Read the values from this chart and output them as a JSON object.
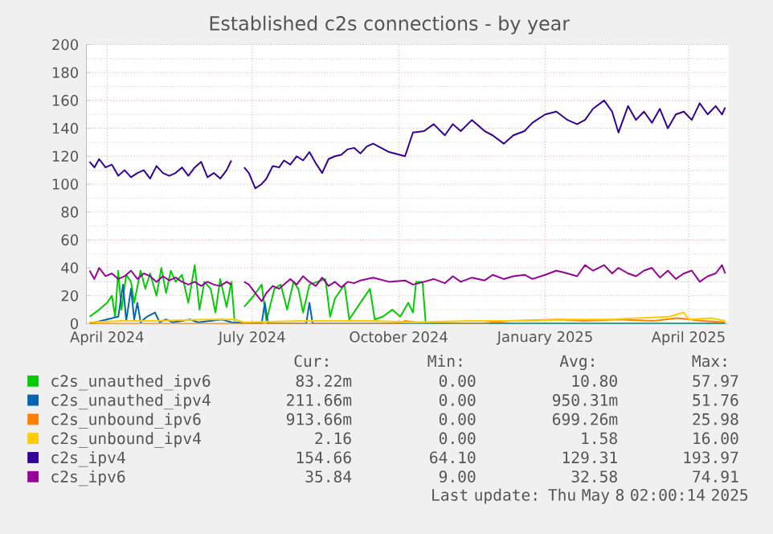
{
  "chart_data": {
    "type": "line",
    "title": "Established c2s connections - by year",
    "xlim": [
      "2024-03-19",
      "2025-04-26"
    ],
    "xticks": [
      {
        "value": "2024-04-01",
        "label": "April 2024"
      },
      {
        "value": "2024-07-01",
        "label": "July 2024"
      },
      {
        "value": "2024-10-01",
        "label": "October 2024"
      },
      {
        "value": "2025-01-01",
        "label": "January 2025"
      },
      {
        "value": "2025-04-01",
        "label": "April 2025"
      }
    ],
    "ylim": [
      0,
      200
    ],
    "yticks": [
      0,
      20,
      40,
      60,
      80,
      100,
      120,
      140,
      160,
      180,
      200
    ],
    "grid": true,
    "legend": "bottom",
    "x": [
      "2024-03-21",
      "2024-03-24",
      "2024-03-27",
      "2024-03-31",
      "2024-04-04",
      "2024-04-08",
      "2024-04-12",
      "2024-04-16",
      "2024-04-20",
      "2024-04-24",
      "2024-04-28",
      "2024-05-02",
      "2024-05-06",
      "2024-05-10",
      "2024-05-14",
      "2024-05-18",
      "2024-05-22",
      "2024-05-26",
      "2024-05-30",
      "2024-06-03",
      "2024-06-07",
      "2024-06-11",
      "2024-06-15",
      "2024-06-18",
      "2024-06-22",
      "2024-06-26",
      "2024-06-29",
      "2024-07-03",
      "2024-07-07",
      "2024-07-10",
      "2024-07-14",
      "2024-07-18",
      "2024-07-21",
      "2024-07-25",
      "2024-07-29",
      "2024-08-02",
      "2024-08-06",
      "2024-08-10",
      "2024-08-14",
      "2024-08-18",
      "2024-08-22",
      "2024-08-26",
      "2024-08-30",
      "2024-09-03",
      "2024-09-07",
      "2024-09-11",
      "2024-09-15",
      "2024-09-25",
      "2024-10-05",
      "2024-10-10",
      "2024-10-17",
      "2024-10-23",
      "2024-10-30",
      "2024-11-04",
      "2024-11-09",
      "2024-11-16",
      "2024-11-24",
      "2024-11-29",
      "2024-12-06",
      "2024-12-12",
      "2024-12-19",
      "2024-12-24",
      "2025-01-01",
      "2025-01-08",
      "2025-01-15",
      "2025-01-21",
      "2025-01-26",
      "2025-01-31",
      "2025-02-07",
      "2025-02-12",
      "2025-02-16",
      "2025-02-22",
      "2025-02-27",
      "2025-03-04",
      "2025-03-09",
      "2025-03-14",
      "2025-03-19",
      "2025-03-24",
      "2025-03-29",
      "2025-04-03",
      "2025-04-08",
      "2025-04-13",
      "2025-04-18",
      "2025-04-22",
      "2025-04-24"
    ],
    "series": [
      {
        "name": "c2s_unauthed_ipv6",
        "color": "#00cc00",
        "x": [
          "2024-03-21",
          "2024-03-27",
          "2024-04-01",
          "2024-04-04",
          "2024-04-06",
          "2024-04-08",
          "2024-04-10",
          "2024-04-13",
          "2024-04-16",
          "2024-04-18",
          "2024-04-22",
          "2024-04-25",
          "2024-04-28",
          "2024-05-02",
          "2024-05-05",
          "2024-05-08",
          "2024-05-11",
          "2024-05-14",
          "2024-05-18",
          "2024-05-22",
          "2024-05-26",
          "2024-05-29",
          "2024-06-01",
          "2024-06-05",
          "2024-06-08",
          "2024-06-11",
          "2024-06-15",
          "2024-06-18",
          "2024-06-20",
          "2024-06-22",
          "2024-06-26",
          "2024-07-02",
          "2024-07-07",
          "2024-07-10",
          "2024-07-15",
          "2024-07-19",
          "2024-07-23",
          "2024-07-27",
          "2024-07-30",
          "2024-08-02",
          "2024-08-06",
          "2024-08-11",
          "2024-08-16",
          "2024-08-19",
          "2024-08-22",
          "2024-08-28",
          "2024-08-31",
          "2024-09-07",
          "2024-09-13",
          "2024-09-16",
          "2024-09-21",
          "2024-09-27",
          "2024-10-02",
          "2024-10-07",
          "2024-10-10",
          "2024-10-12",
          "2024-10-16",
          "2024-10-18",
          "2025-04-24"
        ],
        "values": [
          5,
          10,
          15,
          20,
          5,
          38,
          10,
          35,
          30,
          15,
          38,
          25,
          36,
          20,
          40,
          22,
          38,
          30,
          35,
          15,
          42,
          10,
          30,
          25,
          8,
          32,
          12,
          30,
          2,
          null,
          12,
          20,
          28,
          2,
          25,
          28,
          10,
          30,
          25,
          8,
          28,
          30,
          32,
          5,
          18,
          28,
          3,
          15,
          25,
          3,
          5,
          10,
          5,
          15,
          8,
          30,
          30,
          0,
          0
        ]
      },
      {
        "name": "c2s_unauthed_ipv4",
        "color": "#0066b3",
        "x": [
          "2024-03-21",
          "2024-04-08",
          "2024-04-11",
          "2024-04-13",
          "2024-04-16",
          "2024-04-18",
          "2024-04-20",
          "2024-04-22",
          "2024-04-26",
          "2024-05-01",
          "2024-05-04",
          "2024-05-08",
          "2024-05-12",
          "2024-05-18",
          "2024-05-23",
          "2024-05-28",
          "2024-06-05",
          "2024-06-12",
          "2024-06-18",
          "2024-07-07",
          "2024-07-09",
          "2024-07-11",
          "2024-08-04",
          "2024-08-06",
          "2024-08-08",
          "2025-04-24"
        ],
        "values": [
          0,
          5,
          28,
          2,
          25,
          3,
          15,
          1,
          5,
          8,
          1,
          3,
          1,
          2,
          3,
          1,
          2,
          3,
          1,
          0,
          15,
          0,
          0,
          15,
          0,
          0
        ]
      },
      {
        "name": "c2s_unbound_ipv6",
        "color": "#ff8000",
        "x": [
          "2024-03-21",
          "2024-10-01",
          "2024-10-05",
          "2024-10-12",
          "2024-11-20",
          "2024-12-10",
          "2025-01-10",
          "2025-01-25",
          "2025-02-15",
          "2025-03-10",
          "2025-03-25",
          "2025-04-10",
          "2025-04-24"
        ],
        "values": [
          0,
          0,
          2,
          1,
          0,
          2,
          3,
          2,
          3,
          2,
          4,
          2,
          1
        ]
      },
      {
        "name": "c2s_unbound_ipv4",
        "color": "#ffcc00",
        "x": [
          "2024-03-21",
          "2024-04-10",
          "2024-05-01",
          "2024-06-01",
          "2024-06-20",
          "2024-06-26",
          "2024-08-01",
          "2024-09-15",
          "2024-10-10",
          "2024-11-15",
          "2024-12-20",
          "2025-01-15",
          "2025-02-10",
          "2025-03-01",
          "2025-03-20",
          "2025-03-29",
          "2025-04-01",
          "2025-04-15",
          "2025-04-24"
        ],
        "values": [
          1,
          2,
          2,
          3,
          3,
          1,
          2,
          2,
          1,
          2,
          2,
          3,
          3,
          4,
          5,
          8,
          3,
          4,
          2
        ]
      },
      {
        "name": "c2s_ipv4",
        "color": "#330099",
        "values": [
          116,
          112,
          118,
          112,
          114,
          106,
          110,
          105,
          108,
          110,
          104,
          113,
          108,
          106,
          108,
          112,
          106,
          112,
          116,
          105,
          108,
          104,
          110,
          117,
          null,
          112,
          108,
          97,
          100,
          104,
          113,
          112,
          117,
          114,
          120,
          117,
          123,
          115,
          108,
          118,
          120,
          121,
          125,
          126,
          122,
          127,
          129,
          123,
          120,
          137,
          138,
          143,
          135,
          143,
          138,
          146,
          138,
          135,
          129,
          135,
          138,
          144,
          150,
          152,
          146,
          143,
          146,
          154,
          160,
          152,
          137,
          156,
          146,
          152,
          144,
          154,
          140,
          150,
          152,
          146,
          158,
          150,
          156,
          150,
          155
        ]
      },
      {
        "name": "c2s_ipv6",
        "color": "#990099",
        "values": [
          38,
          32,
          40,
          34,
          36,
          32,
          34,
          38,
          32,
          36,
          34,
          30,
          34,
          31,
          33,
          30,
          28,
          30,
          27,
          30,
          28,
          27,
          30,
          28,
          null,
          30,
          28,
          22,
          16,
          22,
          27,
          25,
          28,
          32,
          28,
          34,
          30,
          27,
          33,
          27,
          30,
          26,
          30,
          29,
          31,
          32,
          33,
          30,
          31,
          28,
          30,
          32,
          29,
          34,
          30,
          33,
          31,
          35,
          32,
          34,
          35,
          32,
          35,
          38,
          36,
          34,
          42,
          38,
          42,
          36,
          40,
          36,
          34,
          38,
          40,
          33,
          38,
          32,
          36,
          38,
          30,
          34,
          36,
          42,
          36
        ]
      }
    ],
    "annotations": [
      "Cur:",
      "Min:",
      "Avg:",
      "Max:",
      "83.22m",
      "0.00",
      "10.80",
      "57.97",
      "211.66m",
      "0.00",
      "950.31m",
      "51.76",
      "913.66m",
      "0.00",
      "699.26m",
      "25.98",
      "2.16",
      "0.00",
      "1.58",
      "16.00",
      "154.66",
      "64.10",
      "129.31",
      "193.97",
      "35.84",
      "9.00",
      "32.58",
      "74.91",
      "Last update: Thu May  8 02:00:14 2025"
    ]
  }
}
